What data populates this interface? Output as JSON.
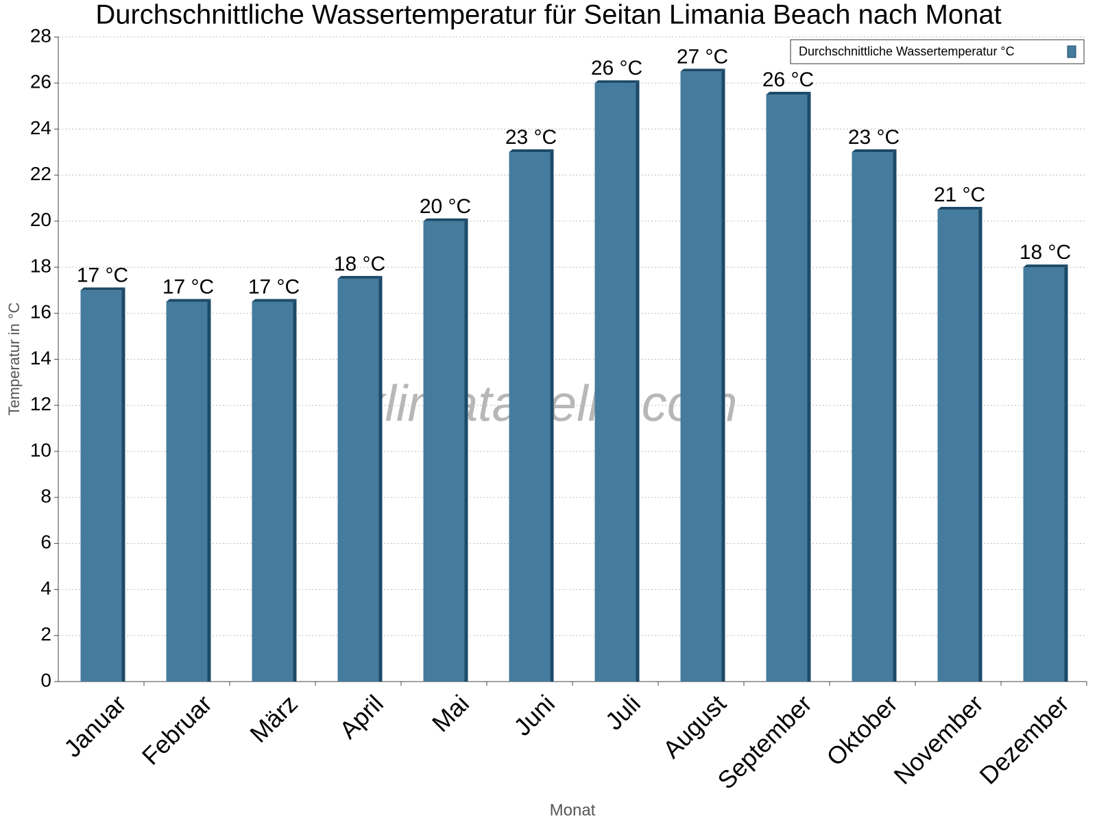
{
  "chart_data": {
    "type": "bar",
    "title": "Durchschnittliche Wassertemperatur für Seitan Limania Beach nach Monat",
    "x_label": "Monat",
    "y_label": "Temperatur in °C",
    "watermark": "klimatabelle.com",
    "categories": [
      "Januar",
      "Februar",
      "März",
      "April",
      "Mai",
      "Juni",
      "Juli",
      "August",
      "September",
      "Oktober",
      "November",
      "Dezember"
    ],
    "series": [
      {
        "name": "Durchschnittliche Wassertemperatur °C",
        "color": "#457b9d",
        "values": [
          17,
          16.5,
          16.5,
          17.5,
          20,
          23,
          26,
          26.5,
          25.5,
          23,
          20.5,
          18
        ],
        "value_labels": [
          "17 °C",
          "17 °C",
          "17 °C",
          "18 °C",
          "20 °C",
          "23 °C",
          "26 °C",
          "27 °C",
          "26 °C",
          "23 °C",
          "21 °C",
          "18 °C"
        ]
      }
    ],
    "ylim": [
      0,
      28
    ],
    "yticks": [
      0,
      2,
      4,
      6,
      8,
      10,
      12,
      14,
      16,
      18,
      20,
      22,
      24,
      26,
      28
    ],
    "grid": true,
    "legend": "top-right"
  }
}
